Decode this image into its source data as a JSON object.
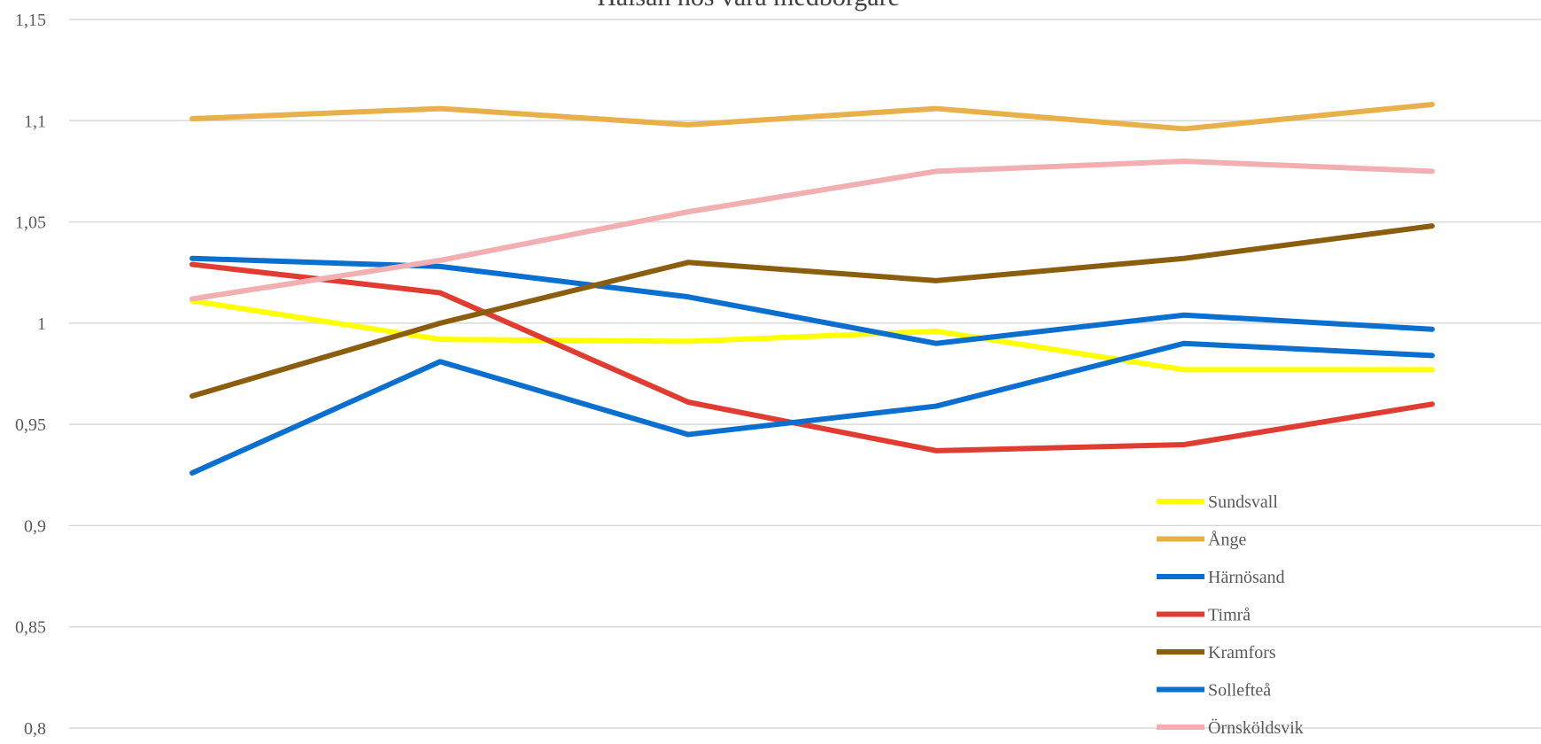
{
  "chart_data": {
    "type": "line",
    "title": "Hälsan hos våra medborgare",
    "xlabel": "",
    "ylabel": "",
    "ylim": [
      0.8,
      1.15
    ],
    "yticks": [
      "0,8",
      "0,85",
      "0,9",
      "0,95",
      "1",
      "1,05",
      "1,1",
      "1,15"
    ],
    "yticks_values": [
      0.8,
      0.85,
      0.9,
      0.95,
      1.0,
      1.05,
      1.1,
      1.15
    ],
    "x": [
      1,
      2,
      3,
      4,
      5,
      6
    ],
    "grid": true,
    "legend_position": "bottom-right",
    "series": [
      {
        "name": "Sundsvall",
        "color": "#ffff00",
        "values": [
          1.011,
          0.992,
          0.991,
          0.996,
          0.977,
          0.977
        ]
      },
      {
        "name": "Ånge",
        "color": "#e8b04a",
        "values": [
          1.101,
          1.106,
          1.098,
          1.106,
          1.096,
          1.108
        ]
      },
      {
        "name": "Härnösand",
        "color": "#0b6fcf",
        "values": [
          1.032,
          1.028,
          1.013,
          0.99,
          1.004,
          0.997
        ]
      },
      {
        "name": "Timrå",
        "color": "#e03c31",
        "values": [
          1.029,
          1.015,
          0.961,
          0.937,
          0.94,
          0.96
        ]
      },
      {
        "name": "Kramfors",
        "color": "#8b5e0f",
        "values": [
          0.964,
          1.0,
          1.03,
          1.021,
          1.032,
          1.048
        ]
      },
      {
        "name": "Sollefteå",
        "color": "#0b6fcf",
        "values": [
          0.926,
          0.981,
          0.945,
          0.959,
          0.99,
          0.984
        ]
      },
      {
        "name": "Örnsköldsvik",
        "color": "#f2aeb0",
        "values": [
          1.012,
          1.031,
          1.055,
          1.075,
          1.08,
          1.075
        ]
      }
    ]
  }
}
